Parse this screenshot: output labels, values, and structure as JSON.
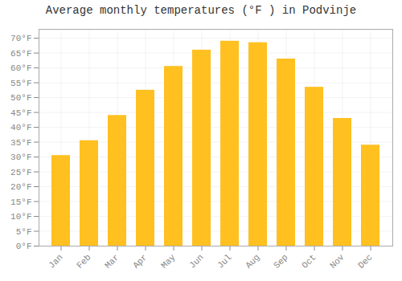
{
  "chart_data": {
    "type": "bar",
    "title": "Average monthly temperatures (°F ) in Podvinje",
    "categories": [
      "Jan",
      "Feb",
      "Mar",
      "Apr",
      "May",
      "Jun",
      "Jul",
      "Aug",
      "Sep",
      "Oct",
      "Nov",
      "Dec"
    ],
    "values": [
      30.5,
      35.5,
      44,
      52.5,
      60.5,
      66,
      69,
      68.5,
      63,
      53.5,
      43,
      34
    ],
    "color": "#FFC020",
    "ylim": [
      0,
      73
    ],
    "yticks": [
      {
        "value": 0,
        "label": "0°F"
      },
      {
        "value": 5,
        "label": "5°F"
      },
      {
        "value": 10,
        "label": "10°F"
      },
      {
        "value": 15,
        "label": "15°F"
      },
      {
        "value": 20,
        "label": "20°F"
      },
      {
        "value": 25,
        "label": "25°F"
      },
      {
        "value": 30,
        "label": "30°F"
      },
      {
        "value": 35,
        "label": "35°F"
      },
      {
        "value": 40,
        "label": "40°F"
      },
      {
        "value": 45,
        "label": "45°F"
      },
      {
        "value": 50,
        "label": "50°F"
      },
      {
        "value": 55,
        "label": "55°F"
      },
      {
        "value": 60,
        "label": "60°F"
      },
      {
        "value": 65,
        "label": "65°F"
      },
      {
        "value": 70,
        "label": "70°F"
      }
    ],
    "grid": true
  }
}
